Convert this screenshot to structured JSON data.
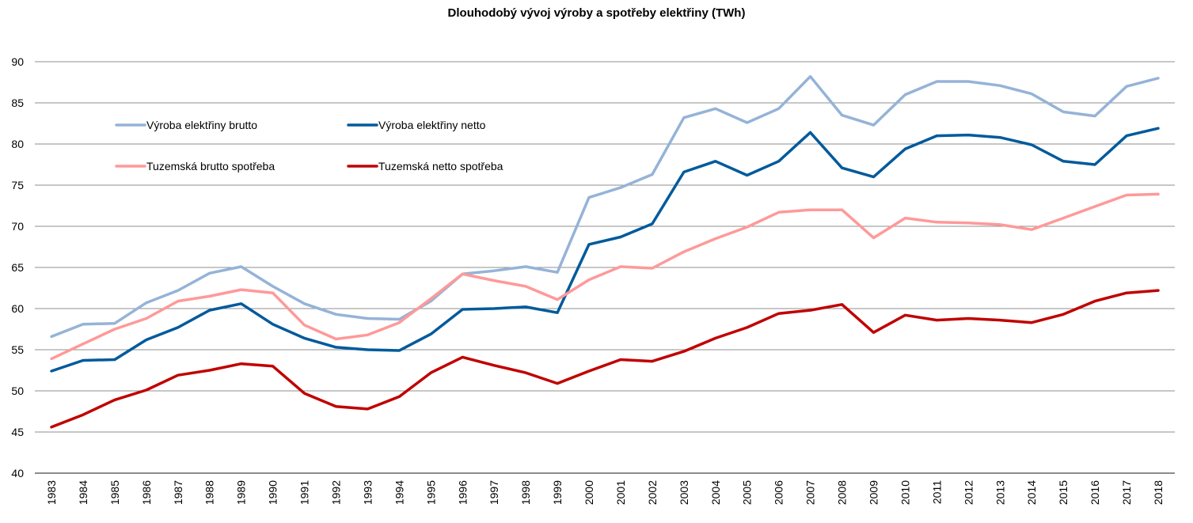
{
  "chart_data": {
    "type": "line",
    "title": "Dlouhodobý vývoj výroby a spotřeby elektřiny (TWh)",
    "xlabel": "",
    "ylabel": "",
    "ylim": [
      40,
      90
    ],
    "yticks": [
      40,
      45,
      50,
      55,
      60,
      65,
      70,
      75,
      80,
      85,
      90
    ],
    "grid": true,
    "legend_position": "top-left",
    "x": [
      "1983",
      "1984",
      "1985",
      "1986",
      "1987",
      "1988",
      "1989",
      "1990",
      "1991",
      "1992",
      "1993",
      "1994",
      "1995",
      "1996",
      "1997",
      "1998",
      "1999",
      "2000",
      "2001",
      "2002",
      "2003",
      "2004",
      "2005",
      "2006",
      "2007",
      "2008",
      "2009",
      "2010",
      "2011",
      "2012",
      "2013",
      "2014",
      "2015",
      "2016",
      "2017",
      "2018"
    ],
    "series": [
      {
        "name": "Výroba elektřiny brutto",
        "color": "#95b3d7",
        "values": [
          56.6,
          58.1,
          58.2,
          60.7,
          62.2,
          64.3,
          65.1,
          62.7,
          60.6,
          59.3,
          58.8,
          58.7,
          60.9,
          64.2,
          64.6,
          65.1,
          64.4,
          73.5,
          74.7,
          76.3,
          83.2,
          84.3,
          82.6,
          84.3,
          88.2,
          83.5,
          82.3,
          86.0,
          87.6,
          87.6,
          87.1,
          86.1,
          83.9,
          83.4,
          87.0,
          88.0
        ]
      },
      {
        "name": "Výroba elektřiny netto",
        "color": "#005a9c",
        "values": [
          52.4,
          53.7,
          53.8,
          56.2,
          57.7,
          59.8,
          60.6,
          58.1,
          56.4,
          55.3,
          55.0,
          54.9,
          56.9,
          59.9,
          60.0,
          60.2,
          59.5,
          67.8,
          68.7,
          70.3,
          76.6,
          77.9,
          76.2,
          77.9,
          81.4,
          77.1,
          76.0,
          79.4,
          81.0,
          81.1,
          80.8,
          79.9,
          77.9,
          77.5,
          81.0,
          81.9
        ]
      },
      {
        "name": "Tuzemská brutto spotřeba",
        "color": "#ff9999",
        "values": [
          53.9,
          55.7,
          57.5,
          58.8,
          60.9,
          61.5,
          62.3,
          61.9,
          58.0,
          56.3,
          56.8,
          58.3,
          61.2,
          64.2,
          63.4,
          62.7,
          61.1,
          63.5,
          65.1,
          64.9,
          66.9,
          68.5,
          69.9,
          71.7,
          72.0,
          72.0,
          68.6,
          71.0,
          70.5,
          70.4,
          70.2,
          69.6,
          71.0,
          72.4,
          73.8,
          73.9
        ]
      },
      {
        "name": "Tuzemská netto spotřeba",
        "color": "#c00000",
        "values": [
          45.6,
          47.1,
          48.9,
          50.1,
          51.9,
          52.5,
          53.3,
          53.0,
          49.7,
          48.1,
          47.8,
          49.3,
          52.2,
          54.1,
          53.1,
          52.2,
          50.9,
          52.4,
          53.8,
          53.6,
          54.8,
          56.4,
          57.7,
          59.4,
          59.8,
          60.5,
          57.1,
          59.2,
          58.6,
          58.8,
          58.6,
          58.3,
          59.3,
          60.9,
          61.9,
          62.2
        ]
      }
    ]
  }
}
